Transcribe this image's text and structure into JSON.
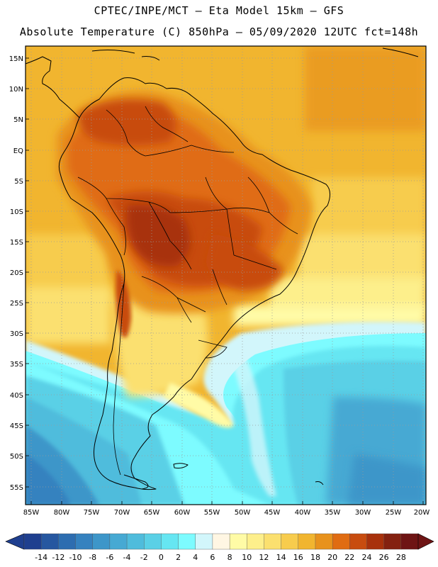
{
  "header": {
    "line1": "CPTEC/INPE/MCT –  Eta Model 15km – GFS",
    "line2": "Absolute Temperature (C) 850hPa – 05/09/2020 12UTC fct=148h"
  },
  "map": {
    "lat_labels": [
      "15N",
      "10N",
      "5N",
      "EQ",
      "5S",
      "10S",
      "15S",
      "20S",
      "25S",
      "30S",
      "35S",
      "40S",
      "45S",
      "50S",
      "55S"
    ],
    "lon_labels": [
      "85W",
      "80W",
      "75W",
      "70W",
      "65W",
      "60W",
      "55W",
      "50W",
      "45W",
      "40W",
      "35W",
      "30W",
      "25W",
      "20W"
    ],
    "grid": "dotted"
  },
  "colorbar": {
    "labels": [
      "-14",
      "-12",
      "-10",
      "-8",
      "-6",
      "-4",
      "-2",
      "0",
      "2",
      "4",
      "6",
      "8",
      "10",
      "12",
      "14",
      "16",
      "18",
      "20",
      "22",
      "24",
      "26",
      "28"
    ],
    "colors": [
      "#1f3f8f",
      "#2657a0",
      "#2d6db0",
      "#3582bf",
      "#3d96c9",
      "#46a9d3",
      "#4fbcdc",
      "#5ad0e6",
      "#66e6f2",
      "#7dfbff",
      "#d2f6fb",
      "#fff6e3",
      "#fffba6",
      "#fdef8b",
      "#fbe06f",
      "#f7cc4d",
      "#f1b52f",
      "#e8921c",
      "#e06c12",
      "#c84c0f",
      "#a8310c",
      "#842110",
      "#6e1414"
    ]
  },
  "color_roles": {
    "tropics_land_hot": "#a8310c",
    "ocean_warm": "#f1b52f",
    "ocean_cold_south": "#3d96c9",
    "coastline": "#000000"
  }
}
